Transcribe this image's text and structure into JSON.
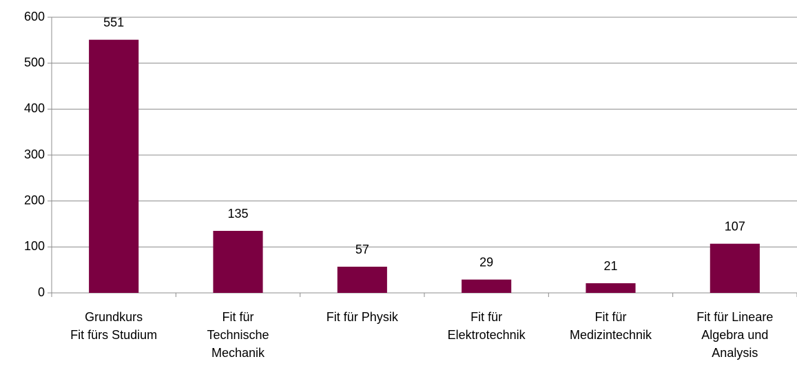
{
  "chart_data": {
    "type": "bar",
    "categories": [
      "Grundkurs\nFit fürs Studium",
      "Fit für\nTechnische\nMechanik",
      "Fit für Physik",
      "Fit für\nElektrotechnik",
      "Fit für\nMedizintechnik",
      "Fit für Lineare\nAlgebra und\nAnalysis"
    ],
    "values": [
      551,
      135,
      57,
      29,
      21,
      107
    ],
    "color": "#7b0041",
    "ylim": [
      0,
      600
    ],
    "yticks": [
      0,
      100,
      200,
      300,
      400,
      500,
      600
    ],
    "grid": true
  }
}
